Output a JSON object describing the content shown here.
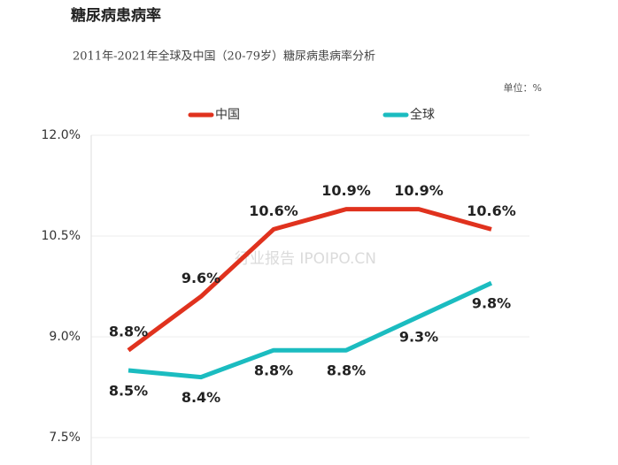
{
  "chart_data": {
    "type": "line",
    "title": "糖尿病患病率",
    "subtitle": "2011年-2021年全球及中国（20-79岁）糖尿病患病率分析",
    "unit_note": "单位：%",
    "watermark": "行业报告 IPOIPO.CN",
    "categories": [
      null,
      null,
      null,
      null,
      null,
      null
    ],
    "series": [
      {
        "name": "中国",
        "color": "#e0321e",
        "values": [
          8.8,
          9.6,
          10.6,
          10.9,
          10.9,
          10.6
        ],
        "value_labels": [
          "8.8%",
          "9.6%",
          "10.6%",
          "10.9%",
          "10.9%",
          "10.6%"
        ]
      },
      {
        "name": "全球",
        "color": "#1bbcc0",
        "values": [
          8.5,
          8.4,
          8.8,
          8.8,
          9.3,
          9.8
        ],
        "value_labels": [
          "8.5%",
          "8.4%",
          "8.8%",
          "8.8%",
          "9.3%",
          "9.8%"
        ]
      }
    ],
    "ylim": [
      7.5,
      12
    ],
    "yticks": [
      {
        "value": 7.5,
        "label": "7.5%"
      },
      {
        "value": 9,
        "label": "9.0%"
      },
      {
        "value": 10.5,
        "label": "10.5%"
      },
      {
        "value": 12,
        "label": "12.0%"
      }
    ],
    "grid": true
  }
}
